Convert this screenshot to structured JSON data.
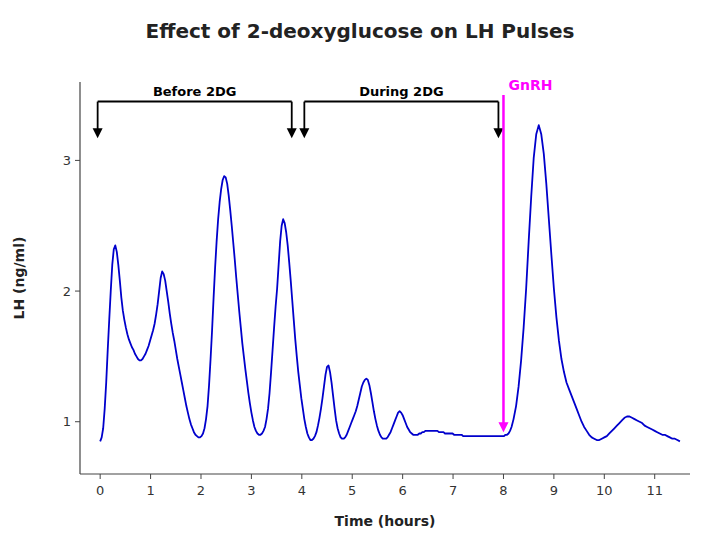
{
  "chart_data": {
    "type": "line",
    "title": "Effect of 2-deoxyglucose on LH Pulses",
    "x_label": "Time (hours)",
    "y_label": "LH (ng/ml)",
    "xlim": [
      -0.4,
      11.7
    ],
    "ylim": [
      0.6,
      3.6
    ],
    "xticks": [
      0,
      1,
      2,
      3,
      4,
      5,
      6,
      7,
      8,
      9,
      10,
      11
    ],
    "yticks": [
      1,
      2,
      3
    ],
    "grid": false,
    "color": "#0000CC",
    "annotations": [
      {
        "text": "Before 2DG",
        "x": [
          -0.05,
          3.8
        ],
        "y": 3.45,
        "y_end": 3.17
      },
      {
        "text": "During 2DG",
        "x": [
          4.05,
          7.9
        ],
        "y": 3.45,
        "y_end": 3.17
      },
      {
        "text": "GnRH",
        "x": 8.0,
        "y": 3.5,
        "y_end": 0.92,
        "color": "#FF00FF"
      }
    ],
    "x": [
      0.0,
      0.03,
      0.06,
      0.09,
      0.12,
      0.15,
      0.18,
      0.21,
      0.24,
      0.27,
      0.3,
      0.33,
      0.36,
      0.39,
      0.42,
      0.45,
      0.48,
      0.51,
      0.54,
      0.57,
      0.6,
      0.63,
      0.66,
      0.69,
      0.72,
      0.75,
      0.78,
      0.81,
      0.84,
      0.87,
      0.9,
      0.93,
      0.96,
      0.99,
      1.02,
      1.05,
      1.08,
      1.11,
      1.14,
      1.17,
      1.2,
      1.23,
      1.26,
      1.29,
      1.32,
      1.35,
      1.38,
      1.41,
      1.44,
      1.47,
      1.5,
      1.53,
      1.56,
      1.59,
      1.62,
      1.65,
      1.68,
      1.71,
      1.74,
      1.77,
      1.8,
      1.83,
      1.86,
      1.89,
      1.92,
      1.95,
      1.98,
      2.01,
      2.04,
      2.07,
      2.1,
      2.13,
      2.16,
      2.19,
      2.22,
      2.25,
      2.28,
      2.31,
      2.34,
      2.37,
      2.4,
      2.43,
      2.46,
      2.49,
      2.52,
      2.55,
      2.58,
      2.61,
      2.64,
      2.67,
      2.7,
      2.73,
      2.76,
      2.79,
      2.82,
      2.85,
      2.88,
      2.91,
      2.94,
      2.97,
      3.0,
      3.03,
      3.06,
      3.09,
      3.12,
      3.15,
      3.18,
      3.21,
      3.24,
      3.27,
      3.3,
      3.33,
      3.36,
      3.39,
      3.42,
      3.45,
      3.48,
      3.51,
      3.54,
      3.57,
      3.6,
      3.63,
      3.66,
      3.69,
      3.72,
      3.75,
      3.78,
      3.81,
      3.84,
      3.87,
      3.9,
      3.93,
      3.96,
      3.99,
      4.02,
      4.05,
      4.08,
      4.11,
      4.14,
      4.17,
      4.2,
      4.23,
      4.26,
      4.29,
      4.32,
      4.35,
      4.38,
      4.41,
      4.44,
      4.47,
      4.5,
      4.53,
      4.56,
      4.59,
      4.62,
      4.65,
      4.68,
      4.71,
      4.74,
      4.77,
      4.8,
      4.83,
      4.86,
      4.89,
      4.92,
      4.95,
      4.98,
      5.01,
      5.04,
      5.07,
      5.1,
      5.13,
      5.16,
      5.19,
      5.22,
      5.25,
      5.28,
      5.31,
      5.34,
      5.37,
      5.4,
      5.43,
      5.46,
      5.49,
      5.52,
      5.55,
      5.58,
      5.61,
      5.64,
      5.67,
      5.7,
      5.73,
      5.76,
      5.79,
      5.82,
      5.85,
      5.88,
      5.91,
      5.94,
      5.97,
      6.0,
      6.03,
      6.06,
      6.09,
      6.12,
      6.15,
      6.18,
      6.21,
      6.24,
      6.27,
      6.3,
      6.33,
      6.36,
      6.39,
      6.42,
      6.45,
      6.48,
      6.51,
      6.54,
      6.57,
      6.6,
      6.63,
      6.66,
      6.69,
      6.72,
      6.75,
      6.78,
      6.81,
      6.84,
      6.87,
      6.9,
      6.93,
      6.96,
      6.99,
      7.02,
      7.05,
      7.08,
      7.11,
      7.14,
      7.17,
      7.2,
      7.23,
      7.26,
      7.29,
      7.32,
      7.35,
      7.38,
      7.41,
      7.44,
      7.47,
      7.5,
      7.53,
      7.56,
      7.59,
      7.62,
      7.65,
      7.68,
      7.71,
      7.74,
      7.77,
      7.8,
      7.83,
      7.86,
      7.89,
      7.92,
      7.95,
      7.98,
      8.01,
      8.04,
      8.07,
      8.1,
      8.13,
      8.16,
      8.2,
      8.25,
      8.3,
      8.35,
      8.4,
      8.45,
      8.5,
      8.55,
      8.6,
      8.65,
      8.7,
      8.75,
      8.8,
      8.85,
      8.9,
      8.95,
      9.0,
      9.05,
      9.1,
      9.15,
      9.2,
      9.25,
      9.3,
      9.35,
      9.4,
      9.45,
      9.5,
      9.55,
      9.6,
      9.65,
      9.7,
      9.75,
      9.8,
      9.85,
      9.9,
      9.95,
      10.0,
      10.05,
      10.1,
      10.15,
      10.2,
      10.25,
      10.3,
      10.35,
      10.4,
      10.45,
      10.5,
      10.55,
      10.6,
      10.65,
      10.7,
      10.75,
      10.8,
      10.85,
      10.9,
      10.95,
      11.0,
      11.05,
      11.1,
      11.15,
      11.2,
      11.25,
      11.3,
      11.35,
      11.4,
      11.45,
      11.5
    ],
    "values": [
      0.85,
      0.88,
      0.95,
      1.1,
      1.3,
      1.55,
      1.78,
      2.0,
      2.2,
      2.32,
      2.35,
      2.3,
      2.2,
      2.08,
      1.95,
      1.85,
      1.78,
      1.72,
      1.67,
      1.63,
      1.6,
      1.57,
      1.55,
      1.52,
      1.5,
      1.48,
      1.47,
      1.47,
      1.48,
      1.5,
      1.52,
      1.55,
      1.58,
      1.62,
      1.66,
      1.7,
      1.75,
      1.82,
      1.9,
      2.0,
      2.1,
      2.15,
      2.13,
      2.08,
      2.0,
      1.92,
      1.83,
      1.75,
      1.68,
      1.62,
      1.55,
      1.48,
      1.42,
      1.36,
      1.3,
      1.24,
      1.18,
      1.12,
      1.07,
      1.02,
      0.98,
      0.95,
      0.92,
      0.9,
      0.89,
      0.88,
      0.88,
      0.89,
      0.91,
      0.95,
      1.02,
      1.12,
      1.28,
      1.48,
      1.7,
      1.95,
      2.18,
      2.38,
      2.55,
      2.68,
      2.78,
      2.85,
      2.88,
      2.87,
      2.82,
      2.73,
      2.62,
      2.5,
      2.37,
      2.24,
      2.1,
      1.97,
      1.84,
      1.72,
      1.6,
      1.5,
      1.4,
      1.31,
      1.22,
      1.14,
      1.07,
      1.01,
      0.96,
      0.93,
      0.91,
      0.9,
      0.9,
      0.91,
      0.93,
      0.96,
      1.02,
      1.1,
      1.22,
      1.38,
      1.55,
      1.72,
      1.88,
      2.02,
      2.2,
      2.38,
      2.5,
      2.55,
      2.52,
      2.45,
      2.35,
      2.22,
      2.08,
      1.93,
      1.78,
      1.63,
      1.5,
      1.38,
      1.28,
      1.18,
      1.1,
      1.02,
      0.96,
      0.91,
      0.88,
      0.86,
      0.86,
      0.87,
      0.89,
      0.92,
      0.97,
      1.03,
      1.1,
      1.18,
      1.27,
      1.36,
      1.42,
      1.43,
      1.38,
      1.3,
      1.2,
      1.1,
      1.01,
      0.95,
      0.91,
      0.88,
      0.87,
      0.87,
      0.88,
      0.9,
      0.93,
      0.96,
      0.99,
      1.02,
      1.05,
      1.08,
      1.12,
      1.17,
      1.22,
      1.27,
      1.3,
      1.32,
      1.33,
      1.32,
      1.28,
      1.22,
      1.15,
      1.08,
      1.02,
      0.97,
      0.93,
      0.9,
      0.88,
      0.87,
      0.87,
      0.87,
      0.88,
      0.9,
      0.92,
      0.95,
      0.98,
      1.01,
      1.04,
      1.07,
      1.08,
      1.07,
      1.05,
      1.02,
      0.99,
      0.96,
      0.94,
      0.92,
      0.91,
      0.9,
      0.9,
      0.9,
      0.9,
      0.91,
      0.91,
      0.92,
      0.92,
      0.93,
      0.93,
      0.93,
      0.93,
      0.93,
      0.93,
      0.93,
      0.93,
      0.93,
      0.92,
      0.92,
      0.92,
      0.92,
      0.91,
      0.91,
      0.91,
      0.91,
      0.91,
      0.91,
      0.9,
      0.9,
      0.9,
      0.9,
      0.9,
      0.9,
      0.89,
      0.89,
      0.89,
      0.89,
      0.89,
      0.89,
      0.89,
      0.89,
      0.89,
      0.89,
      0.89,
      0.89,
      0.89,
      0.89,
      0.89,
      0.89,
      0.89,
      0.89,
      0.89,
      0.89,
      0.89,
      0.89,
      0.89,
      0.89,
      0.89,
      0.89,
      0.89,
      0.89,
      0.9,
      0.9,
      0.91,
      0.93,
      0.96,
      1.02,
      1.12,
      1.27,
      1.47,
      1.72,
      2.02,
      2.38,
      2.72,
      3.02,
      3.2,
      3.27,
      3.2,
      3.05,
      2.82,
      2.55,
      2.28,
      2.02,
      1.8,
      1.62,
      1.48,
      1.38,
      1.3,
      1.25,
      1.2,
      1.15,
      1.1,
      1.05,
      1.0,
      0.96,
      0.93,
      0.9,
      0.88,
      0.87,
      0.86,
      0.86,
      0.87,
      0.88,
      0.89,
      0.91,
      0.93,
      0.95,
      0.97,
      0.99,
      1.01,
      1.03,
      1.04,
      1.04,
      1.03,
      1.02,
      1.01,
      1.0,
      0.99,
      0.97,
      0.96,
      0.95,
      0.94,
      0.93,
      0.92,
      0.91,
      0.9,
      0.9,
      0.89,
      0.88,
      0.87,
      0.87,
      0.86,
      0.85
    ]
  }
}
